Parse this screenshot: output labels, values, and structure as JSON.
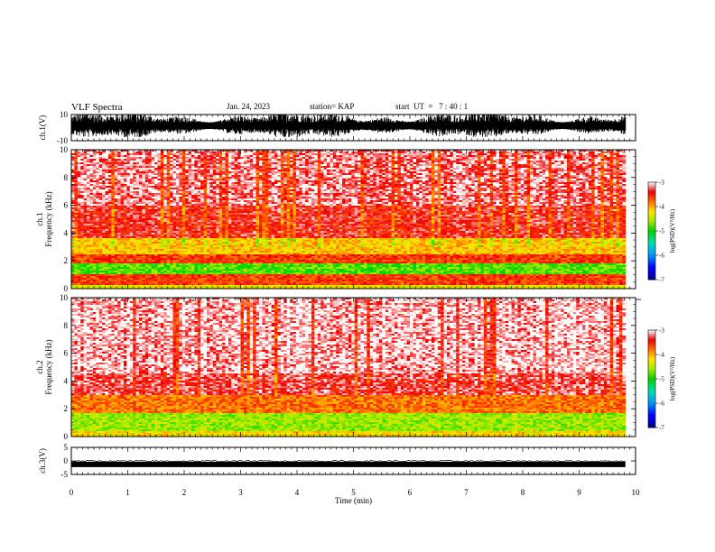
{
  "header": {
    "title": "VLF Spectra",
    "date": "Jan. 24, 2023",
    "station": "station= KAP",
    "start_time": "start  UT  =   7 : 40 : 1"
  },
  "chart_data": [
    {
      "type": "line",
      "panel": "ch1_waveform",
      "ylabel": "ch.1(V)",
      "yticks": [
        "10",
        "-10"
      ],
      "ylim": [
        -10,
        10
      ],
      "x_extent_min": [
        0,
        9.82
      ],
      "appearance": "dense black broadband signal filling roughly -6 to +10 V"
    },
    {
      "type": "heatmap",
      "panel": "ch1_spectrogram",
      "ylabel": "ch.1\nFrequency (kHz)",
      "yticks": [
        "0",
        "2",
        "4",
        "6",
        "8",
        "10"
      ],
      "ylim": [
        0,
        10
      ],
      "x_extent_min": [
        0,
        9.82
      ],
      "colorbar": {
        "label": "log(PSD)(V²/Hz)",
        "ticks": [
          "-3",
          "-4",
          "-5",
          "-6",
          "-7"
        ],
        "range": [
          -7,
          -3
        ]
      },
      "bands": [
        {
          "f_range_khz": [
            0,
            0.3
          ],
          "level": -4.3
        },
        {
          "f_range_khz": [
            0.3,
            1.0
          ],
          "level": -3.6
        },
        {
          "f_range_khz": [
            1.0,
            1.8
          ],
          "level": -4.8
        },
        {
          "f_range_khz": [
            1.8,
            2.5
          ],
          "level": -3.6
        },
        {
          "f_range_khz": [
            2.5,
            3.7
          ],
          "level": -4.1
        },
        {
          "f_range_khz": [
            3.7,
            6.0
          ],
          "level": -3.4
        },
        {
          "f_range_khz": [
            6.0,
            10.0
          ],
          "level": -3.2
        }
      ]
    },
    {
      "type": "heatmap",
      "panel": "ch2_spectrogram",
      "ylabel": "ch.2\nFrequency (kHz)",
      "yticks": [
        "0",
        "2",
        "4",
        "6",
        "8",
        "10"
      ],
      "ylim": [
        0,
        10
      ],
      "x_extent_min": [
        0,
        9.82
      ],
      "colorbar": {
        "label": "log(PSD)(V²/Hz)",
        "ticks": [
          "-3",
          "-4",
          "-5",
          "-6",
          "-7"
        ],
        "range": [
          -7,
          -3
        ]
      },
      "bands": [
        {
          "f_range_khz": [
            0,
            0.4
          ],
          "level": -4.2
        },
        {
          "f_range_khz": [
            0.4,
            1.7
          ],
          "level": -4.6
        },
        {
          "f_range_khz": [
            1.7,
            3.0
          ],
          "level": -3.8
        },
        {
          "f_range_khz": [
            3.0,
            4.5
          ],
          "level": -3.3
        },
        {
          "f_range_khz": [
            4.5,
            10.0
          ],
          "level": -3.1
        }
      ]
    },
    {
      "type": "line",
      "panel": "ch3_waveform",
      "ylabel": "ch.3(V)",
      "yticks": [
        "5",
        "0",
        "-5"
      ],
      "ylim": [
        -5,
        5
      ],
      "x_extent_min": [
        0,
        9.82
      ],
      "appearance": "thick black band at about -1.3 V"
    }
  ],
  "x_axis": {
    "label": "Time  (min)",
    "ticks": [
      "0",
      "1",
      "2",
      "3",
      "4",
      "5",
      "6",
      "7",
      "8",
      "9",
      "10"
    ],
    "xlim": [
      0,
      10
    ]
  }
}
